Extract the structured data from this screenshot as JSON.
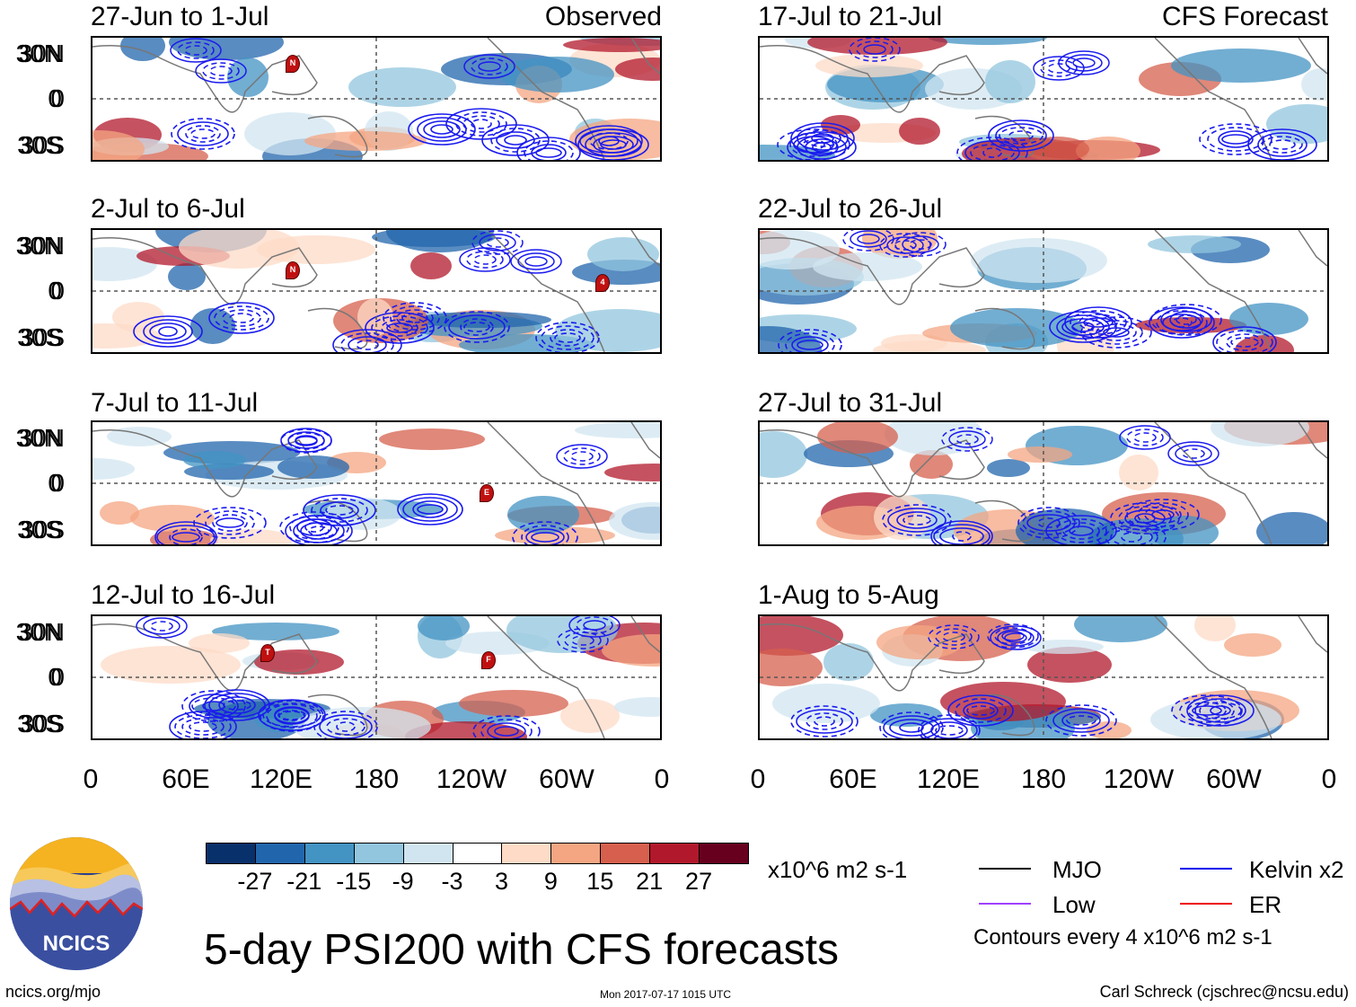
{
  "panels": [
    {
      "title": "27-Jun to 1-Jul",
      "tag": "Observed",
      "storms": [
        "N"
      ]
    },
    {
      "title": "2-Jul to 6-Jul",
      "tag": "",
      "storms": [
        "N",
        "4"
      ]
    },
    {
      "title": "7-Jul to 11-Jul",
      "tag": "",
      "storms": [
        "E"
      ]
    },
    {
      "title": "12-Jul to 16-Jul",
      "tag": "",
      "storms": [
        "T",
        "F"
      ]
    },
    {
      "title": "17-Jul to 21-Jul",
      "tag": "CFS Forecast",
      "storms": []
    },
    {
      "title": "22-Jul to 26-Jul",
      "tag": "",
      "storms": []
    },
    {
      "title": "27-Jul to 31-Jul",
      "tag": "",
      "storms": []
    },
    {
      "title": "1-Aug to 5-Aug",
      "tag": "",
      "storms": []
    }
  ],
  "lat_labels": [
    "30N",
    "0",
    "30S"
  ],
  "lon_labels": [
    "0",
    "60E",
    "120E",
    "180",
    "120W",
    "60W",
    "0"
  ],
  "colorbar": {
    "colors": [
      "#08306b",
      "#2166ac",
      "#4393c3",
      "#92c5de",
      "#d1e5f0",
      "#ffffff",
      "#fddbc7",
      "#f4a582",
      "#d6604d",
      "#b2182b",
      "#67001f"
    ],
    "labels": [
      "-27",
      "-21",
      "-15",
      "-9",
      "-3",
      "3",
      "9",
      "15",
      "21",
      "27"
    ],
    "units": "x10^6 m2 s-1"
  },
  "legend": [
    {
      "label": "MJO",
      "color": "#000000"
    },
    {
      "label": "Kelvin x2",
      "color": "#0000ee"
    },
    {
      "label": "Low",
      "color": "#a040ff"
    },
    {
      "label": "ER",
      "color": "#ee0000"
    }
  ],
  "contour_note": "Contours every 4 x10^6 m2 s-1",
  "main_title": "5-day PSI200 with CFS forecasts",
  "logo_text": "NCICS",
  "footer_left": "ncics.org/mjo",
  "footer_center": "Mon 2017-07-17 1015 UTC",
  "footer_right": "Carl Schreck (cjschrec@ncsu.edu)"
}
